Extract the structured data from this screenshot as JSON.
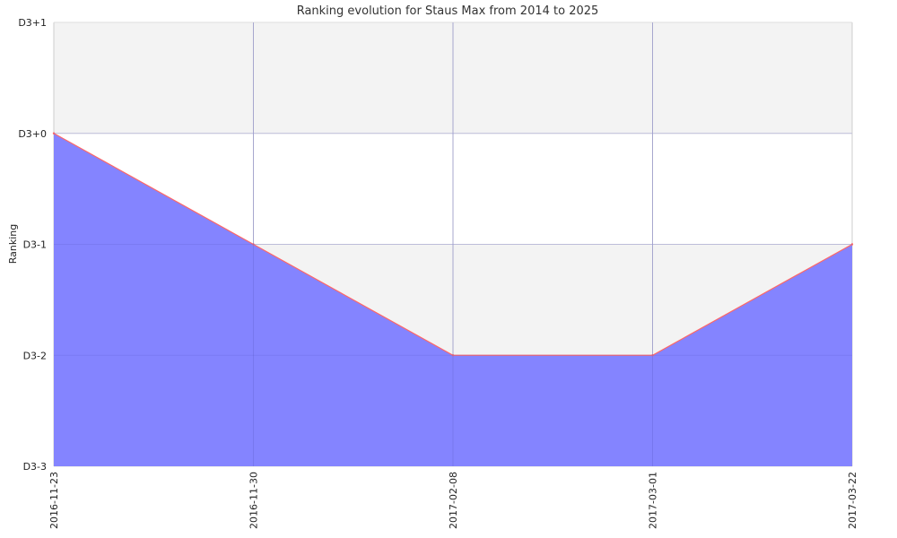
{
  "chart_data": {
    "type": "area",
    "title": "Ranking evolution for Staus Max from 2014 to 2025",
    "xlabel": "",
    "ylabel": "Ranking",
    "x": [
      "2016-11-23",
      "2016-11-30",
      "2017-02-08",
      "2017-03-01",
      "2017-03-22"
    ],
    "y_ticks": [
      "D3+1",
      "D3+0",
      "D3-1",
      "D3-2",
      "D3-3"
    ],
    "series": [
      {
        "values": [
          "D3+0",
          "D3-1",
          "D3-2",
          "D3-2",
          "D3-1"
        ],
        "fill_color": "#8080ff",
        "line_color": "#ff6666"
      }
    ],
    "grid": true,
    "band_colors": [
      "#f3f3f3",
      "#ffffff"
    ]
  }
}
